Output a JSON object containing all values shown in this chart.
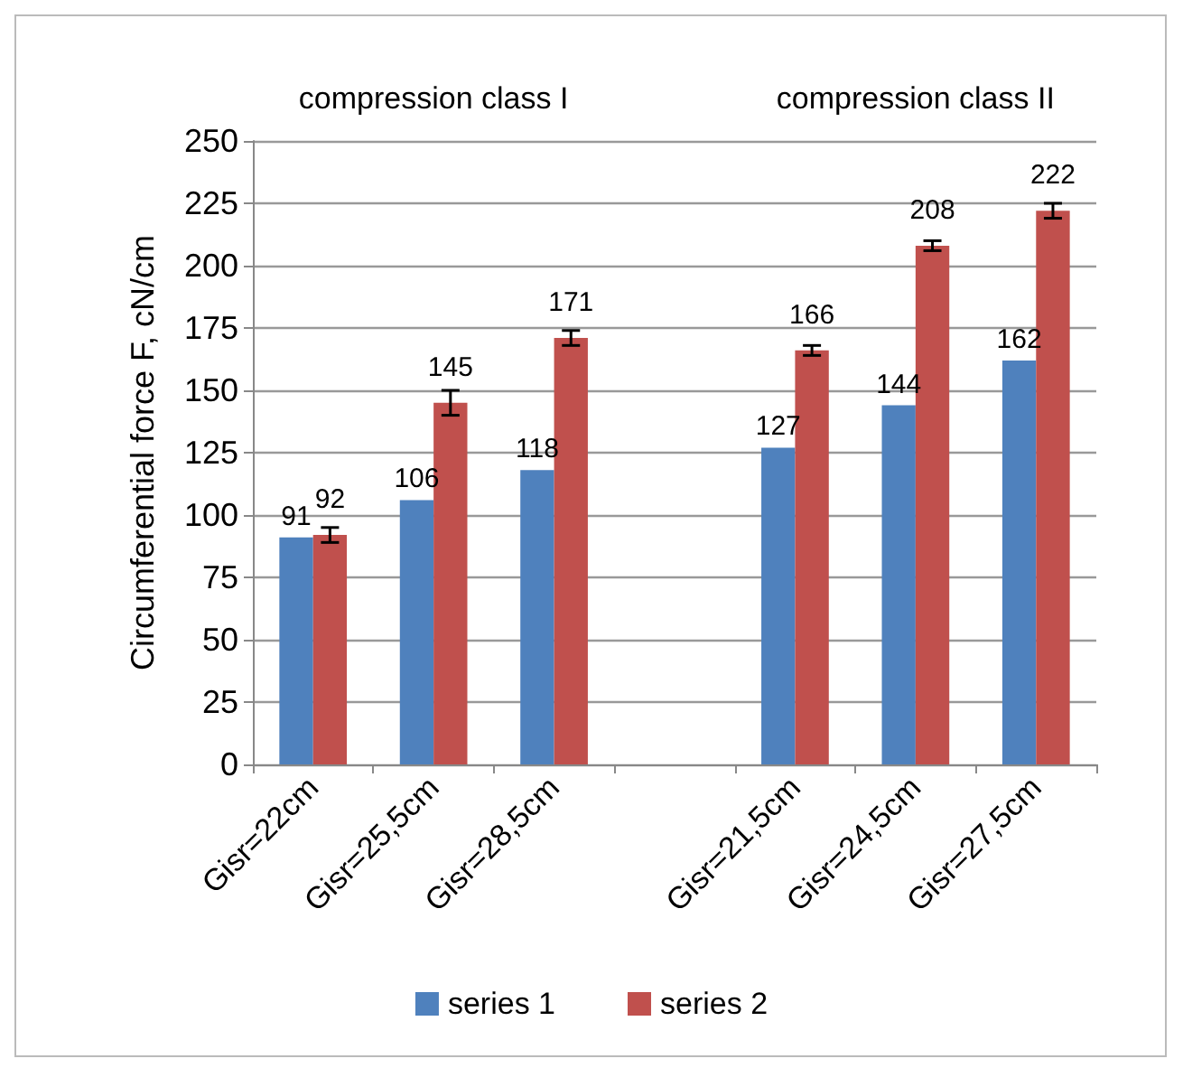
{
  "chart_data": {
    "type": "bar",
    "ylabel": "Circumferential force F, cN/cm",
    "categories": [
      "Gisr=22cm",
      "Gisr=25,5cm",
      "Gisr=28,5cm",
      null,
      "Gisr=21,5cm",
      "Gisr=24,5cm",
      "Gisr=27,5cm"
    ],
    "series": [
      {
        "name": "series 1",
        "color": "#4f81bd",
        "values": [
          91,
          106,
          118,
          null,
          127,
          144,
          162
        ]
      },
      {
        "name": "series 2",
        "color": "#c0504d",
        "values": [
          92,
          145,
          171,
          null,
          166,
          208,
          222
        ],
        "errors": [
          3,
          5,
          3,
          null,
          2,
          2,
          3
        ]
      }
    ],
    "ylim": [
      0,
      250
    ],
    "yticks": [
      0,
      25,
      50,
      75,
      100,
      125,
      150,
      175,
      200,
      225,
      250
    ],
    "annotations": [
      "compression class I",
      "compression class II"
    ],
    "data_labels": true,
    "grid": "y",
    "legend": "bottom"
  }
}
